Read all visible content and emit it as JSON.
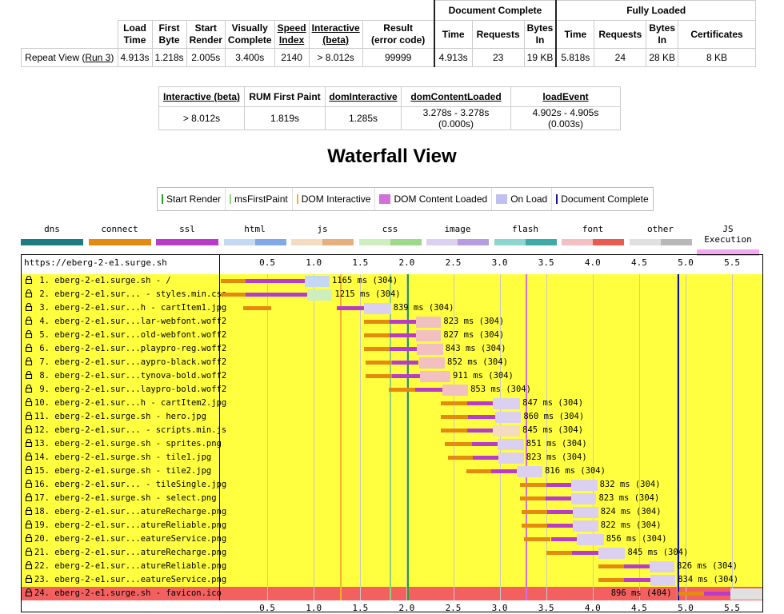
{
  "summary": {
    "groups": {
      "doc": "Document Complete",
      "full": "Fully Loaded"
    },
    "headers": {
      "load_time": [
        "Load",
        "Time"
      ],
      "first_byte": [
        "First",
        "Byte"
      ],
      "start_render": [
        "Start",
        "Render"
      ],
      "visually_complete": [
        "Visually",
        "Complete"
      ],
      "speed_index": [
        "Speed",
        "Index"
      ],
      "interactive": [
        "Interactive",
        "(beta)"
      ],
      "result": [
        "Result",
        "(error code)"
      ],
      "doc_time": "Time",
      "doc_requests": "Requests",
      "doc_bytes": [
        "Bytes",
        "In"
      ],
      "full_time": "Time",
      "full_requests": "Requests",
      "full_bytes": [
        "Bytes",
        "In"
      ],
      "certificates": "Certificates"
    },
    "row": {
      "label_prefix": "Repeat View (",
      "run_link": "Run 3",
      "label_suffix": ")",
      "load_time": "4.913s",
      "first_byte": "1.218s",
      "start_render": "2.005s",
      "visually_complete": "3.400s",
      "speed_index": "2140",
      "interactive": "> 8.012s",
      "result": "99999",
      "doc_time": "4.913s",
      "doc_requests": "23",
      "doc_bytes": "19 KB",
      "full_time": "5.818s",
      "full_requests": "24",
      "full_bytes": "28 KB",
      "certificates": "8 KB"
    }
  },
  "timings": {
    "headers": [
      "Interactive (beta)",
      "RUM First Paint",
      "domInteractive",
      "domContentLoaded",
      "loadEvent"
    ],
    "values": [
      "> 8.012s",
      "1.819s",
      "1.285s",
      "3.278s - 3.278s (0.000s)",
      "4.902s - 4.905s (0.003s)"
    ]
  },
  "waterfall_title": "Waterfall View",
  "legend": [
    {
      "label": "Start Render",
      "color": "#28a028",
      "kind": "line"
    },
    {
      "label": "msFirstPaint",
      "color": "#8fd07c",
      "kind": "line"
    },
    {
      "label": "DOM Interactive",
      "color": "#f0b030",
      "kind": "line"
    },
    {
      "label": "DOM Content Loaded",
      "color": "#d070d8",
      "kind": "box"
    },
    {
      "label": "On Load",
      "color": "#c0c0f0",
      "kind": "box"
    },
    {
      "label": "Document Complete",
      "color": "#1010a0",
      "kind": "line"
    }
  ],
  "type_legend": [
    {
      "label": "dns",
      "colors": [
        "#1c7c80",
        "#1c7c80"
      ]
    },
    {
      "label": "connect",
      "colors": [
        "#e58a10",
        "#e58a10"
      ]
    },
    {
      "label": "ssl",
      "colors": [
        "#b83cc8",
        "#b83cc8"
      ]
    },
    {
      "label": "html",
      "colors": [
        "#c4d8f4",
        "#82a8e6"
      ]
    },
    {
      "label": "js",
      "colors": [
        "#f4dcc0",
        "#e6b07e"
      ]
    },
    {
      "label": "css",
      "colors": [
        "#cfeec0",
        "#9ed88a"
      ]
    },
    {
      "label": "image",
      "colors": [
        "#dcd0f0",
        "#b59ee0"
      ]
    },
    {
      "label": "flash",
      "colors": [
        "#8ed4d0",
        "#3eaaa8"
      ]
    },
    {
      "label": "font",
      "colors": [
        "#f2c0c0",
        "#e85c50"
      ]
    },
    {
      "label": "other",
      "colors": [
        "#e0e0e0",
        "#b8b8b8"
      ]
    },
    {
      "label": "JS Execution",
      "colors": [
        "#f4a8f0",
        "#f4a8f0"
      ]
    }
  ],
  "waterfall": {
    "url": "https://eberg-2-e1.surge.sh",
    "ticks": [
      "0.5",
      "1.0",
      "1.5",
      "2.0",
      "2.5",
      "3.0",
      "3.5",
      "4.0",
      "4.5",
      "5.0",
      "5.5"
    ],
    "tick_values": [
      0.5,
      1.0,
      1.5,
      2.0,
      2.5,
      3.0,
      3.5,
      4.0,
      4.5,
      5.0,
      5.5
    ],
    "events": {
      "dom_interactive": 1.285,
      "first_paint": 1.819,
      "start_render": 2.005,
      "dom_content_loaded": 3.278,
      "on_load": [
        4.902,
        4.905
      ],
      "document_complete": 4.913
    },
    "row_colors": {
      "ok": "#ffff40",
      "error": "#f46060"
    },
    "requests": [
      {
        "label": " 1. eberg-2-e1.surge.sh - /",
        "type": "html",
        "start": 0.0,
        "connect": 0.27,
        "ssl": 0.63,
        "wait": 0.0,
        "download": 0.27,
        "time_label": "1165 ms (304)",
        "error": false
      },
      {
        "label": " 2. eberg-2-e1.sur... - styles.min.css",
        "type": "css",
        "start": 0.0,
        "connect": 0.27,
        "ssl": 0.66,
        "wait": 0.0,
        "download": 0.27,
        "time_label": "1215 ms (304)",
        "error": false
      },
      {
        "label": " 3. eberg-2-e1.sur...h - cartItem1.jpg",
        "type": "image",
        "start": 0.24,
        "connect": 0.3,
        "ssl": 0.0,
        "wait": 0.0,
        "download": 0.0,
        "time_label": "",
        "error": false
      },
      {
        "label": " 3. eberg-2-e1.sur...h - cartItem1.jpg",
        "type": "image",
        "start": 1.25,
        "connect": 0.0,
        "ssl": 0.29,
        "wait": 0.0,
        "download": 0.29,
        "time_label": "839 ms (304)",
        "error": false
      },
      {
        "label": " 4. eberg-2-e1.sur...lar-webfont.woff2",
        "type": "font",
        "start": 1.54,
        "connect": 0.28,
        "ssl": 0.28,
        "wait": 0.0,
        "download": 0.27,
        "time_label": "823 ms (304)",
        "error": false
      },
      {
        "label": " 5. eberg-2-e1.sur...old-webfont.woff2",
        "type": "font",
        "start": 1.54,
        "connect": 0.28,
        "ssl": 0.28,
        "wait": 0.0,
        "download": 0.27,
        "time_label": "827 ms (304)",
        "error": false
      },
      {
        "label": " 6. eberg-2-e1.sur...playpro-reg.woff2",
        "type": "font",
        "start": 1.54,
        "connect": 0.28,
        "ssl": 0.29,
        "wait": 0.0,
        "download": 0.28,
        "time_label": "843 ms (304)",
        "error": false
      },
      {
        "label": " 7. eberg-2-e1.sur...aypro-black.woff2",
        "type": "font",
        "start": 1.56,
        "connect": 0.28,
        "ssl": 0.29,
        "wait": 0.0,
        "download": 0.28,
        "time_label": "852 ms (304)",
        "error": false
      },
      {
        "label": " 8. eberg-2-e1.sur...tynova-bold.woff2",
        "type": "font",
        "start": 1.56,
        "connect": 0.28,
        "ssl": 0.3,
        "wait": 0.0,
        "download": 0.33,
        "time_label": "911 ms (304)",
        "error": false
      },
      {
        "label": " 9. eberg-2-e1.sur...laypro-bold.woff2",
        "type": "font",
        "start": 1.81,
        "connect": 0.28,
        "ssl": 0.29,
        "wait": 0.0,
        "download": 0.28,
        "time_label": "853 ms (304)",
        "error": false
      },
      {
        "label": "10. eberg-2-e1.sur...h - cartItem2.jpg",
        "type": "image",
        "start": 2.37,
        "connect": 0.28,
        "ssl": 0.28,
        "wait": 0.0,
        "download": 0.29,
        "time_label": "847 ms (304)",
        "error": false
      },
      {
        "label": "11. eberg-2-e1.surge.sh - hero.jpg",
        "type": "image",
        "start": 2.37,
        "connect": 0.29,
        "ssl": 0.29,
        "wait": 0.0,
        "download": 0.28,
        "time_label": "860 ms (304)",
        "error": false
      },
      {
        "label": "12. eberg-2-e1.sur... - scripts.min.js",
        "type": "js",
        "start": 2.37,
        "connect": 0.28,
        "ssl": 0.28,
        "wait": 0.0,
        "download": 0.29,
        "time_label": "845 ms (304)",
        "error": false
      },
      {
        "label": "13. eberg-2-e1.surge.sh - sprites.png",
        "type": "image",
        "start": 2.41,
        "connect": 0.29,
        "ssl": 0.28,
        "wait": 0.0,
        "download": 0.28,
        "time_label": "851 ms (304)",
        "error": false
      },
      {
        "label": "14. eberg-2-e1.surge.sh - tile1.jpg",
        "type": "image",
        "start": 2.44,
        "connect": 0.27,
        "ssl": 0.28,
        "wait": 0.0,
        "download": 0.27,
        "time_label": "823 ms (304)",
        "error": false
      },
      {
        "label": "15. eberg-2-e1.surge.sh - tile2.jpg",
        "type": "image",
        "start": 2.64,
        "connect": 0.27,
        "ssl": 0.27,
        "wait": 0.0,
        "download": 0.28,
        "time_label": "816 ms (304)",
        "error": false
      },
      {
        "label": "16. eberg-2-e1.sur... - tileSingle.jpg",
        "type": "image",
        "start": 3.22,
        "connect": 0.28,
        "ssl": 0.27,
        "wait": 0.0,
        "download": 0.28,
        "time_label": "832 ms (304)",
        "error": false
      },
      {
        "label": "17. eberg-2-e1.surge.sh - select.png",
        "type": "image",
        "start": 3.22,
        "connect": 0.27,
        "ssl": 0.28,
        "wait": 0.0,
        "download": 0.27,
        "time_label": "823 ms (304)",
        "error": false
      },
      {
        "label": "18. eberg-2-e1.sur...atureRecharge.png",
        "type": "image",
        "start": 3.24,
        "connect": 0.27,
        "ssl": 0.28,
        "wait": 0.0,
        "download": 0.27,
        "time_label": "824 ms (304)",
        "error": false
      },
      {
        "label": "19. eberg-2-e1.sur...atureReliable.png",
        "type": "image",
        "start": 3.24,
        "connect": 0.27,
        "ssl": 0.28,
        "wait": 0.0,
        "download": 0.27,
        "time_label": "822 ms (304)",
        "error": false
      },
      {
        "label": "20. eberg-2-e1.sur...eatureService.png",
        "type": "image",
        "start": 3.26,
        "connect": 0.29,
        "ssl": 0.28,
        "wait": 0.0,
        "download": 0.29,
        "time_label": "856 ms (304)",
        "error": false
      },
      {
        "label": "21. eberg-2-e1.sur...atureRecharge.png",
        "type": "image",
        "start": 3.5,
        "connect": 0.28,
        "ssl": 0.28,
        "wait": 0.0,
        "download": 0.29,
        "time_label": "845 ms (304)",
        "error": false
      },
      {
        "label": "22. eberg-2-e1.sur...atureReliable.png",
        "type": "image",
        "start": 4.06,
        "connect": 0.28,
        "ssl": 0.27,
        "wait": 0.0,
        "download": 0.27,
        "time_label": "826 ms (304)",
        "error": false
      },
      {
        "label": "23. eberg-2-e1.sur...eatureService.png",
        "type": "image",
        "start": 4.06,
        "connect": 0.28,
        "ssl": 0.28,
        "wait": 0.0,
        "download": 0.27,
        "time_label": "834 ms (304)",
        "error": false
      },
      {
        "label": "24. eberg-2-e1.surge.sh - favicon.ico",
        "type": "other",
        "start": 4.92,
        "connect": 0.28,
        "ssl": 0.28,
        "wait": 0.0,
        "download": 0.36,
        "time_label": "896 ms (404)",
        "error": true
      }
    ]
  }
}
